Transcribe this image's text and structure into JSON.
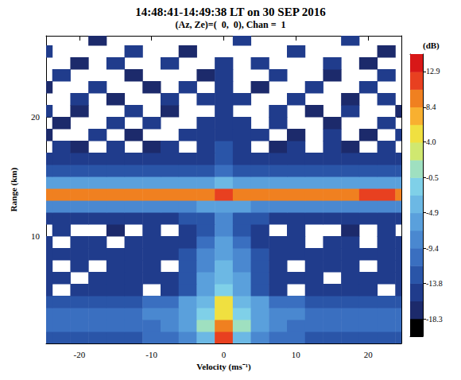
{
  "chart_data": {
    "type": "heatmap",
    "title": "14:48:41-14:49:38 LT on 30 SEP 2016",
    "subtitle": "(Az, Ze)=(  0,  0), Chan =  1",
    "x_label": "Velocity (ms⁻¹)",
    "y_label": "Range (km)",
    "xlim": [
      -24.6,
      24.6
    ],
    "ylim": [
      1,
      26.8
    ],
    "xticks": [
      -20,
      -10,
      0,
      10,
      20
    ],
    "yticks": [
      10,
      20
    ],
    "grid": false,
    "x": [
      -25,
      -22.5,
      -20,
      -17.5,
      -15,
      -12.5,
      -10,
      -7.5,
      -5,
      -2.5,
      0,
      2.5,
      5,
      7.5,
      10,
      12.5,
      15,
      17.5,
      20,
      22.5,
      25
    ],
    "y": [
      1.5,
      2.5,
      3.5,
      4.5,
      5.5,
      6.5,
      7.5,
      8.5,
      9.5,
      10.5,
      11.5,
      12.5,
      13.5,
      14.5,
      15.5,
      16.5,
      17.5,
      18.5,
      19.5,
      20.5,
      21.5,
      22.5,
      23.5,
      24.5,
      25.5,
      26.5
    ],
    "values": [
      [
        -13,
        -13,
        -13,
        -12,
        -12,
        -12,
        -11,
        -10,
        -8,
        -3,
        12,
        -3,
        -8,
        -10,
        -11,
        -12,
        -12,
        -12,
        -13,
        -13,
        -13
      ],
      [
        -11,
        -11,
        -11,
        -11,
        -10,
        -10,
        -10,
        -9,
        -6,
        0,
        10,
        0,
        -6,
        -9,
        -10,
        -10,
        -10,
        -11,
        -11,
        -11,
        -11
      ],
      [
        -10,
        -10,
        -10,
        -10,
        -10,
        -10,
        -9,
        -8,
        -5,
        -2,
        5,
        -2,
        -5,
        -8,
        -9,
        -10,
        -10,
        -10,
        -10,
        -10,
        -10
      ],
      [
        -12,
        -12,
        -12,
        -12,
        -12,
        -12,
        -11,
        -10,
        -7,
        -3,
        6,
        -3,
        -7,
        -10,
        -11,
        -12,
        -12,
        -12,
        -12,
        -12,
        -12
      ],
      [
        -15,
        null,
        -15,
        -15,
        -16,
        -15,
        null,
        -15,
        -12,
        -7,
        -2,
        -7,
        -12,
        -15,
        null,
        -15,
        -16,
        -15,
        -15,
        null,
        -15
      ],
      [
        -15,
        -15,
        null,
        -15,
        -15,
        -16,
        -15,
        -15,
        -12,
        -7,
        -3,
        -7,
        -12,
        -15,
        -15,
        -16,
        null,
        -15,
        -15,
        -15,
        -15
      ],
      [
        -16,
        null,
        -16,
        null,
        -16,
        -15,
        -16,
        null,
        -13,
        -8,
        -4,
        -8,
        -13,
        -16,
        null,
        -16,
        -15,
        -16,
        null,
        -16,
        -16
      ],
      [
        -15,
        -15,
        -15,
        -15,
        -15,
        -15,
        -15,
        -15,
        -13,
        -9,
        -5,
        -9,
        -13,
        -15,
        -15,
        -15,
        -15,
        -15,
        -15,
        -15,
        -15
      ],
      [
        -16,
        null,
        -16,
        -16,
        null,
        -16,
        -16,
        -16,
        -14,
        -10,
        -6,
        -10,
        -14,
        -16,
        -16,
        null,
        -16,
        -16,
        null,
        -16,
        -16
      ],
      [
        null,
        -16,
        null,
        null,
        -17,
        null,
        -16,
        null,
        -16,
        -12,
        -8,
        -12,
        -16,
        null,
        -16,
        null,
        null,
        -17,
        null,
        -16,
        null
      ],
      [
        -14,
        -14,
        -14,
        -14,
        -14,
        -14,
        -14,
        -14,
        -13,
        -12,
        -9,
        -12,
        -13,
        -14,
        -14,
        -14,
        -14,
        -14,
        -14,
        -14,
        -14
      ],
      [
        -9,
        -9,
        -9,
        -9,
        -9,
        -9,
        -9,
        -9,
        -8,
        -7,
        -5,
        -7,
        -8,
        -9,
        -9,
        -9,
        -9,
        -9,
        -9,
        -9,
        -9
      ],
      [
        9,
        9,
        10,
        10,
        10,
        10,
        9,
        9,
        10,
        10,
        11,
        10,
        10,
        9,
        9,
        10,
        10,
        10,
        11,
        11,
        10
      ],
      [
        -6,
        -6,
        -6,
        -6,
        -6,
        -6,
        -6,
        -6,
        -6,
        -5,
        -4,
        -5,
        -6,
        -6,
        -6,
        -6,
        -6,
        -6,
        -6,
        -6,
        -6
      ],
      [
        -13,
        -13,
        -13,
        -13,
        -13,
        -13,
        -13,
        -13,
        -13,
        -12,
        -11,
        -12,
        -13,
        -13,
        -13,
        -13,
        -13,
        -13,
        -13,
        -13,
        -13
      ],
      [
        -15,
        -15,
        -15,
        -16,
        -16,
        -16,
        -16,
        -16,
        -15,
        -15,
        -13,
        -15,
        -15,
        -16,
        -16,
        -16,
        -16,
        -15,
        -15,
        -15,
        -15
      ],
      [
        null,
        -16,
        -17,
        null,
        -16,
        null,
        -17,
        -16,
        null,
        -16,
        -13,
        -16,
        null,
        -17,
        -16,
        null,
        -16,
        -17,
        null,
        -16,
        null
      ],
      [
        -17,
        null,
        null,
        -16,
        null,
        -17,
        null,
        null,
        -16,
        -15,
        -14,
        -15,
        -16,
        null,
        -17,
        null,
        -16,
        null,
        -17,
        null,
        -16
      ],
      [
        null,
        -17,
        null,
        null,
        -16,
        null,
        -16,
        null,
        null,
        -16,
        -14,
        -16,
        null,
        -16,
        null,
        null,
        -17,
        null,
        null,
        -16,
        null
      ],
      [
        -16,
        null,
        -17,
        null,
        null,
        -16,
        null,
        -17,
        null,
        null,
        -15,
        null,
        null,
        -16,
        null,
        -17,
        null,
        -16,
        null,
        null,
        -17
      ],
      [
        null,
        null,
        -16,
        null,
        -17,
        null,
        null,
        -16,
        null,
        -16,
        -15,
        -16,
        null,
        null,
        -16,
        null,
        null,
        -17,
        null,
        -16,
        null
      ],
      [
        -17,
        null,
        null,
        -16,
        null,
        null,
        -17,
        null,
        -16,
        null,
        -16,
        null,
        -17,
        null,
        null,
        -16,
        null,
        null,
        -16,
        null,
        null
      ],
      [
        null,
        -16,
        null,
        null,
        null,
        -17,
        null,
        null,
        null,
        -17,
        -16,
        null,
        null,
        -16,
        null,
        null,
        -17,
        null,
        null,
        -16,
        null
      ],
      [
        null,
        null,
        -17,
        null,
        -16,
        null,
        null,
        -16,
        null,
        null,
        -16,
        null,
        -16,
        null,
        null,
        null,
        -16,
        null,
        -17,
        null,
        null
      ],
      [
        -16,
        null,
        null,
        null,
        null,
        -16,
        null,
        null,
        -17,
        null,
        null,
        null,
        null,
        null,
        -16,
        null,
        null,
        null,
        null,
        -17,
        null
      ],
      [
        null,
        null,
        null,
        -17,
        null,
        null,
        null,
        null,
        null,
        null,
        null,
        -16,
        null,
        null,
        null,
        null,
        null,
        -16,
        null,
        null,
        null
      ]
    ],
    "colorbar": {
      "label": "(dB)",
      "range": [
        -20.5,
        15.1
      ],
      "ticks": [
        -18.3,
        -13.8,
        -9.4,
        -4.9,
        -0.5,
        {
          "value": 4,
          "label": "4.0"
        },
        8.4,
        12.9
      ],
      "colors": [
        "#000000",
        "#1c2a6b",
        "#203c8c",
        "#2a55a8",
        "#3a6fc0",
        "#4a88d0",
        "#5aa0dc",
        "#6cb8e4",
        "#7fd0e8",
        "#9fe0c0",
        "#d0e870",
        "#f0e040",
        "#f8b030",
        "#f08020",
        "#e84020",
        "#d81818"
      ]
    }
  }
}
